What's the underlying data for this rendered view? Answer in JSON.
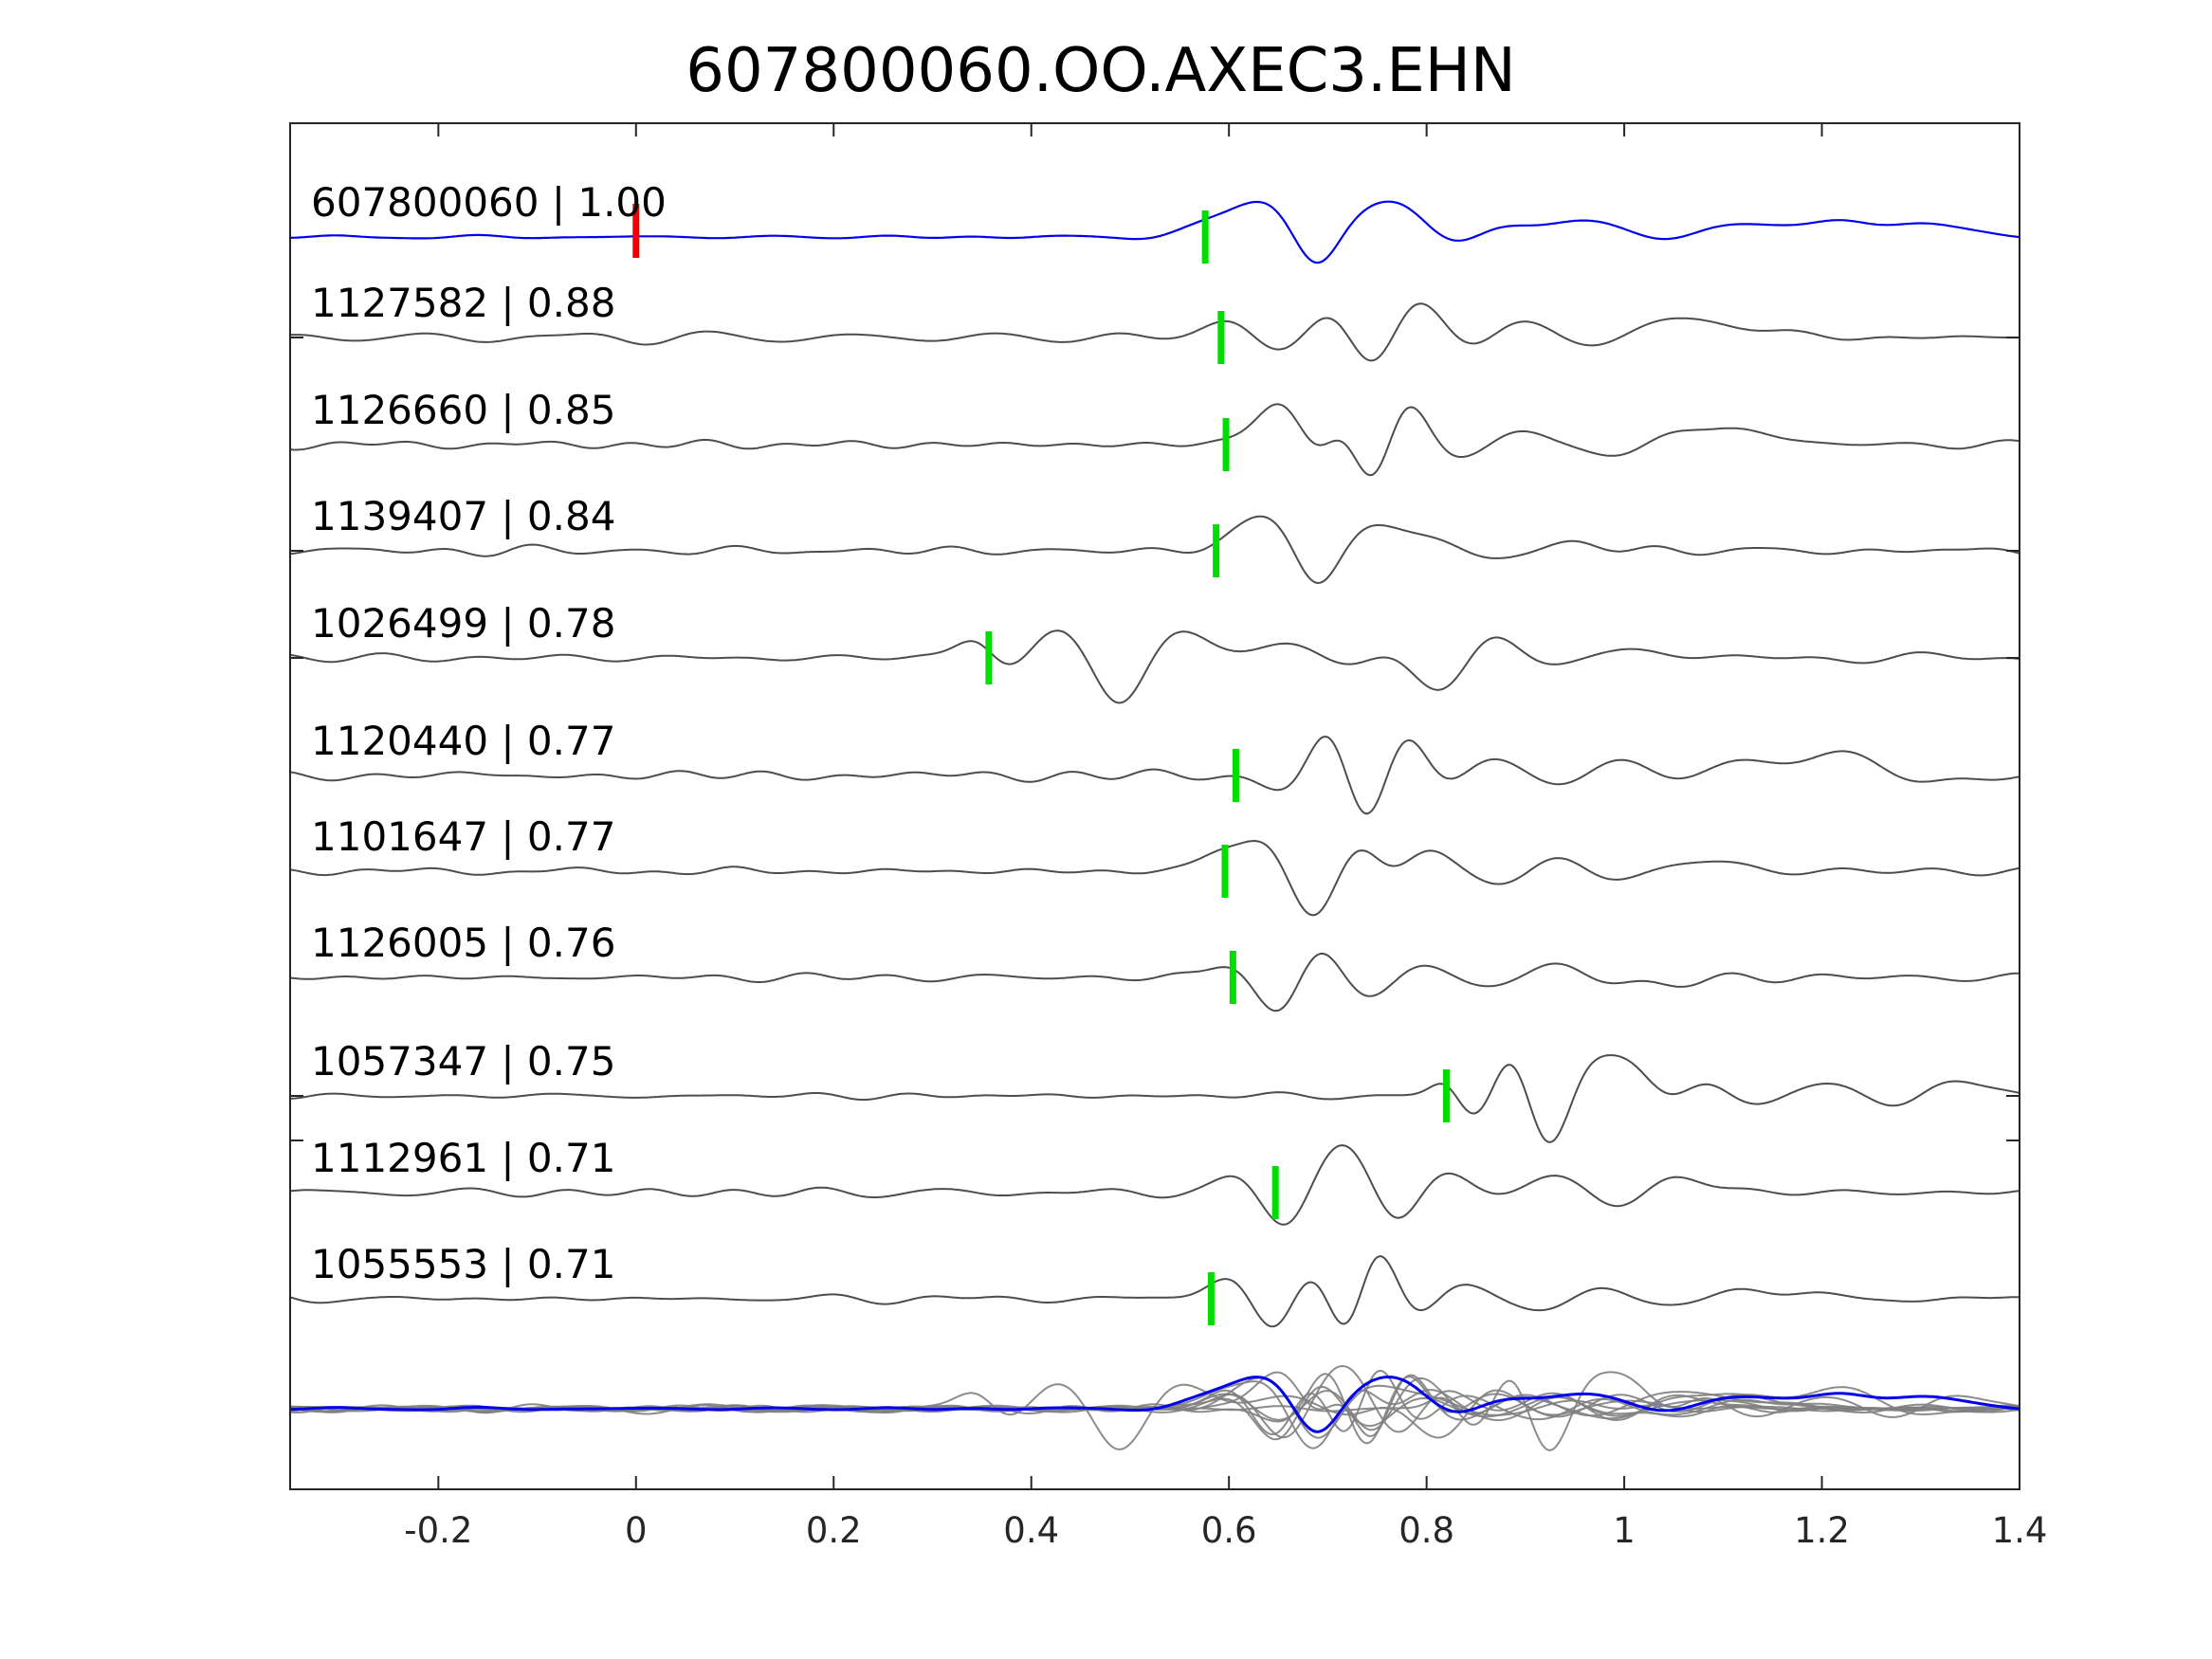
{
  "chart_data": {
    "type": "line",
    "title": "607800060.OO.AXEC3.EHN",
    "xlabel": "",
    "ylabel": "",
    "xlim": [
      -0.35,
      1.4
    ],
    "xticks": [
      -0.2,
      0,
      0.2,
      0.4,
      0.6,
      0.8,
      1,
      1.2,
      1.4
    ],
    "xtick_labels": [
      "-0.2",
      "0",
      "0.2",
      "0.4",
      "0.6",
      "0.8",
      "1",
      "1.2",
      "1.4"
    ],
    "grid": false,
    "colors": {
      "master": "#0000ee",
      "template": "#4d4d4d",
      "stack": "#7f7f7f",
      "pick": "#00dd00",
      "origin": "#ee0000",
      "axes": "#262626"
    },
    "origin_marker_x": 0,
    "series": [
      {
        "name": "607800060 | 1.00",
        "pick": 0.576,
        "role": "master",
        "waveform": [
          [
            0.58,
            0.15,
            0.028
          ],
          [
            0.615,
            0.3,
            0.028
          ],
          [
            0.648,
            0.45,
            0.03
          ],
          [
            0.688,
            -0.75,
            0.022
          ],
          [
            0.73,
            0.25,
            0.03
          ],
          [
            0.775,
            0.55,
            0.032
          ],
          [
            0.825,
            -0.22,
            0.03
          ],
          [
            0.88,
            0.15,
            0.035
          ],
          [
            0.98,
            0.35,
            0.05
          ],
          [
            1.04,
            -0.3,
            0.04
          ],
          [
            1.11,
            0.3,
            0.045
          ],
          [
            1.22,
            0.3,
            0.03
          ],
          [
            1.31,
            0.25,
            0.035
          ]
        ]
      },
      {
        "name": "1127582 | 0.88",
        "pick": 0.592,
        "role": "template",
        "waveform": [
          [
            0.605,
            0.4,
            0.025
          ],
          [
            0.655,
            -0.45,
            0.03
          ],
          [
            0.705,
            0.75,
            0.028
          ],
          [
            0.745,
            -1.0,
            0.025
          ],
          [
            0.79,
            0.85,
            0.03
          ],
          [
            0.84,
            -0.3,
            0.03
          ],
          [
            0.9,
            0.3,
            0.035
          ],
          [
            0.97,
            -0.25,
            0.035
          ],
          [
            1.03,
            0.3,
            0.04
          ],
          [
            1.11,
            0.2,
            0.04
          ]
        ]
      },
      {
        "name": "1126660 | 0.85",
        "pick": 0.597,
        "role": "template",
        "waveform": [
          [
            0.65,
            0.8,
            0.025
          ],
          [
            0.69,
            -0.5,
            0.02
          ],
          [
            0.715,
            0.6,
            0.02
          ],
          [
            0.745,
            -1.0,
            0.02
          ],
          [
            0.78,
            1.0,
            0.022
          ],
          [
            0.82,
            -0.35,
            0.03
          ],
          [
            0.9,
            0.25,
            0.04
          ],
          [
            0.98,
            -0.25,
            0.04
          ],
          [
            1.05,
            0.2,
            0.04
          ],
          [
            1.12,
            0.25,
            0.035
          ]
        ]
      },
      {
        "name": "1139407 | 0.84",
        "pick": 0.587,
        "role": "template",
        "waveform": [
          [
            0.64,
            0.7,
            0.03
          ],
          [
            0.688,
            -0.9,
            0.022
          ],
          [
            0.73,
            0.25,
            0.03
          ],
          [
            0.78,
            0.35,
            0.04
          ],
          [
            0.86,
            -0.15,
            0.04
          ],
          [
            0.95,
            0.12,
            0.04
          ]
        ]
      },
      {
        "name": "1026499 | 0.78",
        "pick": 0.357,
        "role": "template",
        "waveform": [
          [
            0.345,
            0.5,
            0.02
          ],
          [
            0.38,
            -0.4,
            0.025
          ],
          [
            0.43,
            0.6,
            0.03
          ],
          [
            0.49,
            -1.0,
            0.025
          ],
          [
            0.55,
            0.55,
            0.03
          ],
          [
            0.66,
            0.25,
            0.03
          ],
          [
            0.73,
            -0.35,
            0.03
          ],
          [
            0.76,
            0.4,
            0.03
          ],
          [
            0.82,
            -0.9,
            0.03
          ],
          [
            0.86,
            0.7,
            0.03
          ],
          [
            0.92,
            -0.3,
            0.03
          ],
          [
            0.98,
            0.2,
            0.04
          ]
        ]
      },
      {
        "name": "1120440 | 0.77",
        "pick": 0.607,
        "role": "template",
        "waveform": [
          [
            0.66,
            -0.3,
            0.025
          ],
          [
            0.7,
            0.9,
            0.02
          ],
          [
            0.74,
            -1.0,
            0.02
          ],
          [
            0.78,
            0.9,
            0.022
          ],
          [
            0.82,
            -0.35,
            0.025
          ],
          [
            0.87,
            0.4,
            0.03
          ],
          [
            0.93,
            -0.3,
            0.03
          ],
          [
            0.99,
            0.35,
            0.035
          ],
          [
            1.05,
            -0.2,
            0.03
          ],
          [
            1.12,
            0.3,
            0.035
          ],
          [
            1.22,
            0.45,
            0.035
          ],
          [
            1.29,
            -0.15,
            0.04
          ]
        ]
      },
      {
        "name": "1101647 | 0.77",
        "pick": 0.596,
        "role": "template",
        "waveform": [
          [
            0.59,
            0.3,
            0.02
          ],
          [
            0.635,
            0.55,
            0.025
          ],
          [
            0.685,
            -0.9,
            0.022
          ],
          [
            0.73,
            0.45,
            0.02
          ],
          [
            0.77,
            -0.2,
            0.02
          ],
          [
            0.8,
            0.5,
            0.025
          ],
          [
            0.87,
            -0.25,
            0.03
          ],
          [
            0.94,
            0.25,
            0.03
          ],
          [
            1.0,
            -0.2,
            0.035
          ],
          [
            1.07,
            0.2,
            0.04
          ]
        ]
      },
      {
        "name": "1126005 | 0.76",
        "pick": 0.604,
        "role": "template",
        "waveform": [
          [
            0.6,
            0.3,
            0.02
          ],
          [
            0.65,
            -0.8,
            0.022
          ],
          [
            0.69,
            0.7,
            0.022
          ],
          [
            0.74,
            -0.5,
            0.025
          ],
          [
            0.79,
            0.3,
            0.03
          ],
          [
            0.85,
            -0.2,
            0.03
          ],
          [
            0.93,
            0.2,
            0.035
          ],
          [
            1.02,
            -0.15,
            0.04
          ]
        ]
      },
      {
        "name": "1057347 | 0.75",
        "pick": 0.82,
        "role": "template",
        "waveform": [
          [
            0.82,
            0.35,
            0.015
          ],
          [
            0.85,
            -0.5,
            0.02
          ],
          [
            0.885,
            0.8,
            0.018
          ],
          [
            0.925,
            -1.0,
            0.02
          ],
          [
            0.96,
            0.35,
            0.02
          ],
          [
            1.0,
            0.7,
            0.03
          ],
          [
            1.04,
            -0.3,
            0.025
          ],
          [
            1.08,
            0.35,
            0.025
          ],
          [
            1.13,
            -0.25,
            0.03
          ],
          [
            1.2,
            0.3,
            0.03
          ],
          [
            1.27,
            -0.2,
            0.03
          ],
          [
            1.34,
            0.25,
            0.035
          ]
        ]
      },
      {
        "name": "1112961 | 0.71",
        "pick": 0.647,
        "role": "template",
        "waveform": [
          [
            0.61,
            0.3,
            0.02
          ],
          [
            0.66,
            -0.7,
            0.022
          ],
          [
            0.72,
            1.0,
            0.03
          ],
          [
            0.77,
            -0.9,
            0.025
          ],
          [
            0.82,
            0.6,
            0.03
          ],
          [
            0.87,
            -0.35,
            0.03
          ],
          [
            0.92,
            0.5,
            0.03
          ],
          [
            0.98,
            -0.3,
            0.035
          ],
          [
            1.05,
            0.25,
            0.04
          ]
        ]
      },
      {
        "name": "1055553 | 0.71",
        "pick": 0.582,
        "role": "template",
        "waveform": [
          [
            0.6,
            0.45,
            0.022
          ],
          [
            0.645,
            -0.7,
            0.02
          ],
          [
            0.685,
            0.55,
            0.02
          ],
          [
            0.72,
            -0.85,
            0.018
          ],
          [
            0.75,
            1.0,
            0.02
          ],
          [
            0.79,
            -0.4,
            0.022
          ],
          [
            0.84,
            0.35,
            0.03
          ],
          [
            0.91,
            -0.3,
            0.035
          ],
          [
            0.98,
            0.3,
            0.035
          ],
          [
            1.05,
            -0.25,
            0.04
          ],
          [
            1.12,
            0.25,
            0.04
          ]
        ]
      }
    ],
    "stack": {
      "role": "overlay",
      "name": ""
    }
  }
}
